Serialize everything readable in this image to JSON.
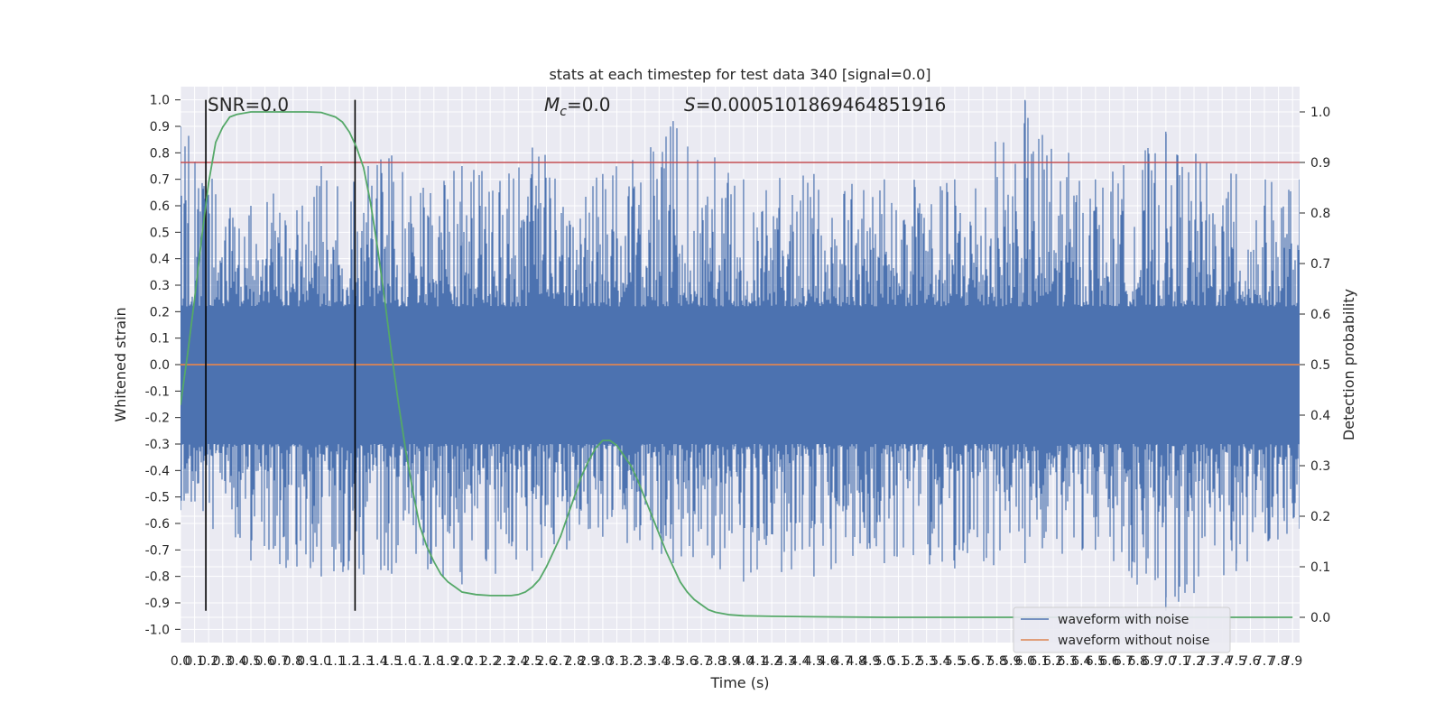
{
  "chart_data": {
    "type": "line",
    "title": "stats at each timestep for test data 340 [signal=0.0]",
    "xlabel": "Time (s)",
    "ylabel_left": "Whitened strain",
    "ylabel_right": "Detection probability",
    "xlim": [
      0.0,
      7.95
    ],
    "ylim_left": [
      -1.05,
      1.05
    ],
    "ylim_right": [
      -0.05,
      1.05
    ],
    "x_ticks": [
      "0.0",
      "0.1",
      "0.2",
      "0.3",
      "0.4",
      "0.5",
      "0.6",
      "0.7",
      "0.8",
      "0.9",
      "1.0",
      "1.1",
      "1.2",
      "1.3",
      "1.4",
      "1.5",
      "1.6",
      "1.7",
      "1.8",
      "1.9",
      "2.0",
      "2.1",
      "2.2",
      "2.3",
      "2.4",
      "2.5",
      "2.6",
      "2.7",
      "2.8",
      "2.9",
      "3.0",
      "3.1",
      "3.2",
      "3.3",
      "3.4",
      "3.5",
      "3.6",
      "3.7",
      "3.8",
      "3.9",
      "4.0",
      "4.1",
      "4.2",
      "4.3",
      "4.4",
      "4.5",
      "4.6",
      "4.7",
      "4.8",
      "4.9",
      "5.0",
      "5.1",
      "5.2",
      "5.3",
      "5.4",
      "5.5",
      "5.6",
      "5.7",
      "5.8",
      "5.9",
      "6.0",
      "6.1",
      "6.2",
      "6.3",
      "6.4",
      "6.5",
      "6.6",
      "6.7",
      "6.8",
      "6.9",
      "7.0",
      "7.1",
      "7.2",
      "7.3",
      "7.4",
      "7.5",
      "7.6",
      "7.7",
      "7.8",
      "7.9"
    ],
    "y_ticks_left": [
      "-1.0",
      "-0.9",
      "-0.8",
      "-0.7",
      "-0.6",
      "-0.5",
      "-0.4",
      "-0.3",
      "-0.2",
      "-0.1",
      "0.0",
      "0.1",
      "0.2",
      "0.3",
      "0.4",
      "0.5",
      "0.6",
      "0.7",
      "0.8",
      "0.9",
      "1.0"
    ],
    "y_ticks_right": [
      "0.0",
      "0.1",
      "0.2",
      "0.3",
      "0.4",
      "0.5",
      "0.6",
      "0.7",
      "0.8",
      "0.9",
      "1.0"
    ],
    "annotations": {
      "snr": "SNR=0.0",
      "mc": "=0.0",
      "mc_symbol": "M",
      "mc_sub": "c",
      "s": "=0.0005101869464851916",
      "s_symbol": "S"
    },
    "threshold_right": 0.9,
    "vertical_lines_x": [
      0.18,
      1.24
    ],
    "series": [
      {
        "name": "waveform with noise",
        "color": "#4c72b0",
        "description_values": "noise",
        "envelope_x": [
          0.0,
          0.5,
          1.0,
          1.5,
          2.0,
          2.5,
          3.0,
          3.5,
          4.0,
          4.5,
          5.0,
          5.5,
          6.0,
          6.5,
          7.0,
          7.5,
          7.95
        ],
        "envelope_max": [
          0.9,
          0.6,
          0.75,
          0.79,
          0.75,
          0.82,
          0.72,
          0.92,
          0.7,
          0.72,
          0.7,
          0.7,
          1.0,
          0.7,
          0.88,
          0.72,
          0.7
        ],
        "envelope_min": [
          -0.55,
          -0.74,
          -0.8,
          -0.79,
          -0.83,
          -0.78,
          -0.65,
          -0.75,
          -0.82,
          -0.8,
          -0.75,
          -0.77,
          -0.75,
          -0.7,
          -0.93,
          -0.78,
          -0.62
        ]
      },
      {
        "name": "waveform without noise",
        "color": "#dd8452",
        "values": "constant 0.0"
      },
      {
        "name": "",
        "color": "#55a868",
        "axis": "right",
        "x": [
          0.0,
          0.05,
          0.1,
          0.15,
          0.2,
          0.25,
          0.3,
          0.35,
          0.4,
          0.5,
          0.6,
          0.7,
          0.8,
          0.9,
          1.0,
          1.1,
          1.15,
          1.2,
          1.25,
          1.3,
          1.35,
          1.4,
          1.45,
          1.5,
          1.55,
          1.6,
          1.65,
          1.7,
          1.75,
          1.8,
          1.85,
          1.9,
          1.95,
          2.0,
          2.1,
          2.2,
          2.3,
          2.35,
          2.4,
          2.45,
          2.5,
          2.55,
          2.6,
          2.65,
          2.7,
          2.75,
          2.8,
          2.85,
          2.9,
          2.95,
          3.0,
          3.05,
          3.1,
          3.15,
          3.2,
          3.25,
          3.3,
          3.35,
          3.4,
          3.45,
          3.5,
          3.55,
          3.6,
          3.65,
          3.7,
          3.75,
          3.8,
          3.9,
          4.0,
          4.2,
          4.5,
          5.0,
          6.0,
          7.0,
          7.9
        ],
        "y": [
          0.42,
          0.52,
          0.63,
          0.75,
          0.86,
          0.94,
          0.97,
          0.99,
          0.995,
          1.0,
          1.0,
          1.0,
          1.0,
          1.0,
          0.999,
          0.99,
          0.98,
          0.96,
          0.93,
          0.89,
          0.82,
          0.73,
          0.63,
          0.52,
          0.42,
          0.33,
          0.25,
          0.18,
          0.14,
          0.11,
          0.085,
          0.07,
          0.06,
          0.05,
          0.045,
          0.043,
          0.043,
          0.043,
          0.045,
          0.05,
          0.06,
          0.075,
          0.1,
          0.13,
          0.16,
          0.2,
          0.24,
          0.28,
          0.31,
          0.335,
          0.35,
          0.35,
          0.34,
          0.32,
          0.3,
          0.27,
          0.235,
          0.2,
          0.165,
          0.13,
          0.1,
          0.07,
          0.05,
          0.035,
          0.025,
          0.015,
          0.01,
          0.005,
          0.003,
          0.002,
          0.001,
          0.0,
          0.0,
          0.0,
          0.0
        ]
      }
    ],
    "threshold_color": "#c44e52",
    "grid": true,
    "legend_position": "lower-right"
  }
}
